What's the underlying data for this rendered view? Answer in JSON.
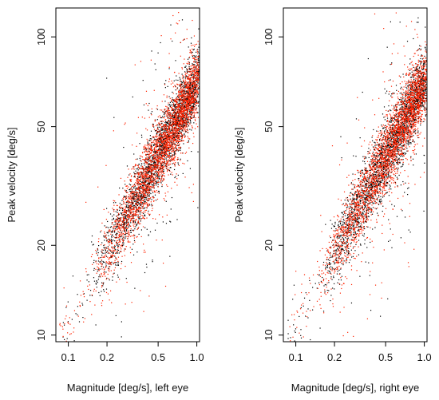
{
  "chart_data": [
    {
      "type": "scatter",
      "id": "left",
      "xlabel": "Magnitude [deg/s], left eye",
      "ylabel": "Peak velocity [deg/s]",
      "x_scale": "log",
      "y_scale": "log",
      "xlim": [
        0.08,
        1.05
      ],
      "ylim": [
        9.5,
        125
      ],
      "x_ticks": [
        0.1,
        0.2,
        0.5,
        1.0
      ],
      "x_tick_labels": [
        "0.1",
        "0.2",
        "0.5",
        "1.0"
      ],
      "y_ticks": [
        10,
        20,
        50,
        100
      ],
      "y_tick_labels": [
        "10",
        "20",
        "50",
        "100"
      ],
      "series": [
        {
          "color": "#000000",
          "trend_points": [
            [
              0.18,
              16.0
            ],
            [
              0.3,
              26.0
            ],
            [
              0.5,
              41.0
            ],
            [
              0.8,
              60.0
            ],
            [
              1.0,
              72.0
            ]
          ]
        },
        {
          "color": "#ff2200",
          "trend_points": [
            [
              0.17,
              15.5
            ],
            [
              0.3,
              25.0
            ],
            [
              0.5,
              39.0
            ],
            [
              0.8,
              58.0
            ],
            [
              1.0,
              70.0
            ]
          ]
        }
      ]
    },
    {
      "type": "scatter",
      "id": "right",
      "xlabel": "Magnitude [deg/s], right eye",
      "ylabel": "Peak velocity [deg/s]",
      "x_scale": "log",
      "y_scale": "log",
      "xlim": [
        0.08,
        1.05
      ],
      "ylim": [
        9.5,
        125
      ],
      "x_ticks": [
        0.1,
        0.2,
        0.5,
        1.0
      ],
      "x_tick_labels": [
        "0.1",
        "0.2",
        "0.5",
        "1.0"
      ],
      "y_ticks": [
        10,
        20,
        50,
        100
      ],
      "y_tick_labels": [
        "10",
        "20",
        "50",
        "100"
      ],
      "series": [
        {
          "color": "#000000",
          "trend_points": [
            [
              0.18,
              16.5
            ],
            [
              0.3,
              27.0
            ],
            [
              0.5,
              42.0
            ],
            [
              0.8,
              61.0
            ],
            [
              1.0,
              73.0
            ]
          ]
        },
        {
          "color": "#ff2200",
          "trend_points": [
            [
              0.17,
              16.0
            ],
            [
              0.3,
              26.0
            ],
            [
              0.5,
              40.0
            ],
            [
              0.8,
              59.0
            ],
            [
              1.0,
              71.0
            ]
          ]
        }
      ]
    }
  ]
}
